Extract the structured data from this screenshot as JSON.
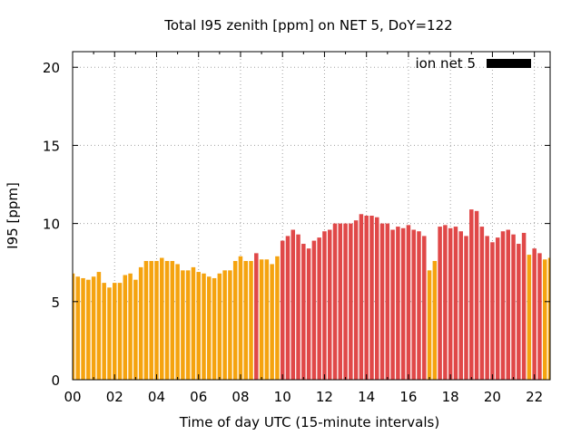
{
  "chart_data": {
    "type": "bar",
    "title": "Total I95 zenith [ppm] on NET 5, DoY=122",
    "xlabel": "Time of day UTC (15-minute intervals)",
    "ylabel": "I95 [ppm]",
    "xlim": [
      0,
      22.75
    ],
    "ylim": [
      0,
      21
    ],
    "grid": true,
    "legend": {
      "placement": "top-right",
      "entries": [
        {
          "label": "ion net 5",
          "color": "#000000"
        }
      ]
    },
    "x_ticks": [
      "00",
      "02",
      "04",
      "06",
      "08",
      "10",
      "12",
      "14",
      "16",
      "18",
      "20",
      "22"
    ],
    "y_ticks": [
      "0",
      "5",
      "10",
      "15",
      "20"
    ],
    "bar_interval_hours": 0.25,
    "colors": {
      "orange": "#f5a30f",
      "red": "#e04848"
    },
    "values": [
      6.8,
      6.6,
      6.5,
      6.4,
      6.6,
      6.9,
      6.2,
      5.9,
      6.2,
      6.2,
      6.7,
      6.8,
      6.4,
      7.2,
      7.6,
      7.6,
      7.6,
      7.8,
      7.6,
      7.6,
      7.4,
      7.0,
      7.0,
      7.2,
      6.9,
      6.8,
      6.6,
      6.5,
      6.8,
      7.0,
      7.0,
      7.6,
      7.9,
      7.6,
      7.6,
      8.1,
      7.7,
      7.7,
      7.4,
      7.9,
      8.9,
      9.2,
      9.6,
      9.3,
      8.7,
      8.4,
      8.9,
      9.1,
      9.5,
      9.6,
      10.0,
      10.0,
      10.0,
      10.0,
      10.2,
      10.6,
      10.5,
      10.5,
      10.4,
      10.0,
      10.0,
      9.6,
      9.8,
      9.7,
      9.9,
      9.6,
      9.5,
      9.2,
      7.0,
      7.6,
      9.8,
      9.9,
      9.7,
      9.8,
      9.5,
      9.2,
      10.9,
      10.8,
      9.8,
      9.2,
      8.8,
      9.1,
      9.5,
      9.6,
      9.3,
      8.7,
      9.4,
      8.0,
      8.4,
      8.1,
      7.7,
      7.8
    ],
    "bar_colors": [
      "orange",
      "orange",
      "orange",
      "orange",
      "orange",
      "orange",
      "orange",
      "orange",
      "orange",
      "orange",
      "orange",
      "orange",
      "orange",
      "orange",
      "orange",
      "orange",
      "orange",
      "orange",
      "orange",
      "orange",
      "orange",
      "orange",
      "orange",
      "orange",
      "orange",
      "orange",
      "orange",
      "orange",
      "orange",
      "orange",
      "orange",
      "orange",
      "orange",
      "orange",
      "orange",
      "red",
      "orange",
      "orange",
      "orange",
      "orange",
      "red",
      "red",
      "red",
      "red",
      "red",
      "red",
      "red",
      "red",
      "red",
      "red",
      "red",
      "red",
      "red",
      "red",
      "red",
      "red",
      "red",
      "red",
      "red",
      "red",
      "red",
      "red",
      "red",
      "red",
      "red",
      "red",
      "red",
      "red",
      "orange",
      "orange",
      "red",
      "red",
      "red",
      "red",
      "red",
      "red",
      "red",
      "red",
      "red",
      "red",
      "red",
      "red",
      "red",
      "red",
      "red",
      "red",
      "red",
      "orange",
      "red",
      "red",
      "orange",
      "orange"
    ]
  }
}
